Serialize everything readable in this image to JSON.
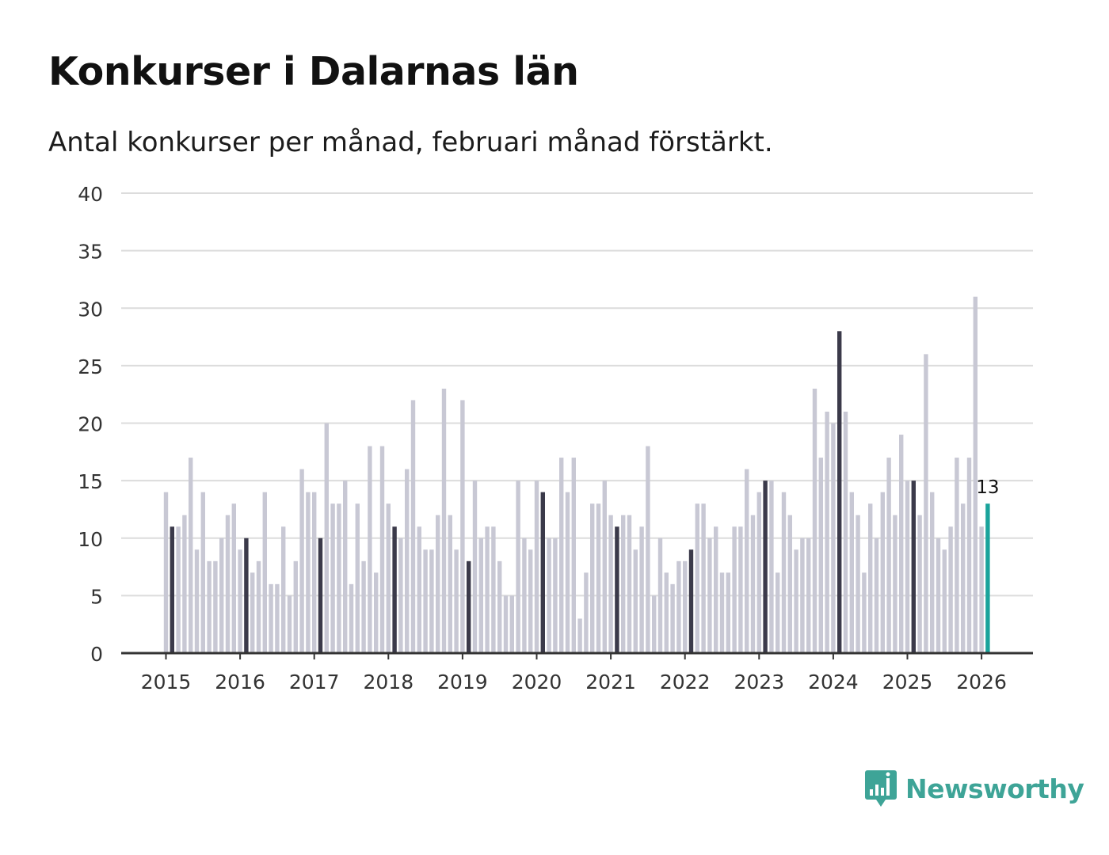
{
  "title": "Konkurser i Dalarnas län",
  "subtitle": "Antal konkurser per månad, februari månad förstärkt.",
  "brand": {
    "name": "Newsworthy",
    "color": "#3ea497"
  },
  "colors": {
    "bar": "#c8c8d4",
    "highlight": "#3b3a4a",
    "latest": "#1aa39b",
    "grid": "#dcdcdc",
    "axis": "#333333"
  },
  "chart_data": {
    "type": "bar",
    "title": "Konkurser i Dalarnas län",
    "xlabel": "",
    "ylabel": "",
    "ylim": [
      0,
      40
    ],
    "y_ticks": [
      0,
      5,
      10,
      15,
      20,
      25,
      30,
      35,
      40
    ],
    "x_ticks": [
      "2015",
      "2016",
      "2017",
      "2018",
      "2019",
      "2020",
      "2021",
      "2022",
      "2023",
      "2024",
      "2025",
      "2026"
    ],
    "start": "2015-01",
    "highlight_month": "februari",
    "latest_label": "13",
    "series": [
      {
        "name": "Antal konkurser",
        "values": [
          14,
          11,
          11,
          12,
          17,
          9,
          14,
          8,
          8,
          10,
          12,
          13,
          9,
          10,
          7,
          8,
          14,
          6,
          6,
          11,
          5,
          8,
          16,
          14,
          14,
          10,
          20,
          13,
          13,
          15,
          6,
          13,
          8,
          18,
          7,
          18,
          13,
          11,
          10,
          16,
          22,
          11,
          9,
          9,
          12,
          23,
          12,
          9,
          22,
          8,
          15,
          10,
          11,
          11,
          8,
          5,
          5,
          15,
          10,
          9,
          15,
          14,
          10,
          10,
          17,
          14,
          17,
          3,
          7,
          13,
          13,
          15,
          12,
          11,
          12,
          12,
          9,
          11,
          18,
          5,
          10,
          7,
          6,
          8,
          8,
          9,
          13,
          13,
          10,
          11,
          7,
          7,
          11,
          11,
          16,
          12,
          14,
          15,
          15,
          7,
          14,
          12,
          9,
          10,
          10,
          23,
          17,
          21,
          20,
          28,
          21,
          14,
          12,
          7,
          13,
          10,
          14,
          17,
          12,
          19,
          15,
          15,
          12,
          26,
          14,
          10,
          9,
          11,
          17,
          13,
          17,
          31,
          11,
          13
        ]
      }
    ]
  }
}
